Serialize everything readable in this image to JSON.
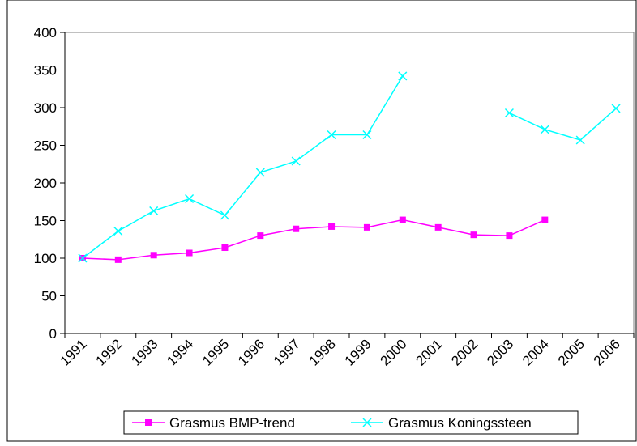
{
  "chart_data": {
    "type": "line",
    "categories": [
      "1991",
      "1992",
      "1993",
      "1994",
      "1995",
      "1996",
      "1997",
      "1998",
      "1999",
      "2000",
      "2001",
      "2002",
      "2003",
      "2004",
      "2005",
      "2006"
    ],
    "series": [
      {
        "name": "Grasmus BMP-trend",
        "color": "#ff00ff",
        "marker": "square",
        "values": [
          100,
          98,
          104,
          107,
          114,
          130,
          139,
          142,
          141,
          151,
          141,
          131,
          130,
          151,
          null,
          null
        ]
      },
      {
        "name": "Grasmus Koningssteen",
        "color": "#00ffff",
        "marker": "x",
        "values": [
          100,
          136,
          163,
          179,
          157,
          214,
          229,
          264,
          264,
          342,
          null,
          null,
          293,
          271,
          257,
          299
        ]
      }
    ],
    "ylim": [
      0,
      400
    ],
    "yticks": [
      0,
      50,
      100,
      150,
      200,
      250,
      300,
      350,
      400
    ],
    "grid": false,
    "legend": "bottom"
  }
}
